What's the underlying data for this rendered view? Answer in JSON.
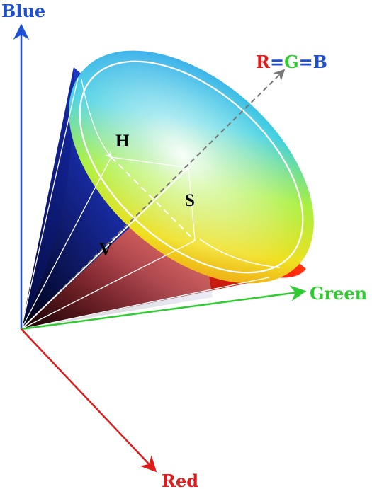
{
  "axes": {
    "blue": {
      "label": "Blue",
      "color": "#1f4fd6"
    },
    "green": {
      "label": "Green",
      "color": "#2ecc2e"
    },
    "red": {
      "label": "Red",
      "color": "#e01b1b"
    }
  },
  "diagonal": {
    "r": "R",
    "eq1": "=",
    "g": "G",
    "eq2": "=",
    "b": "B",
    "r_color": "#e01b1b",
    "g_color": "#2ecc2e",
    "b_color": "#1f4fd6",
    "eq_color": "#1f4fd6",
    "line_color": "#777777"
  },
  "cone_labels": {
    "h": "H",
    "s": "S",
    "v": "V"
  }
}
